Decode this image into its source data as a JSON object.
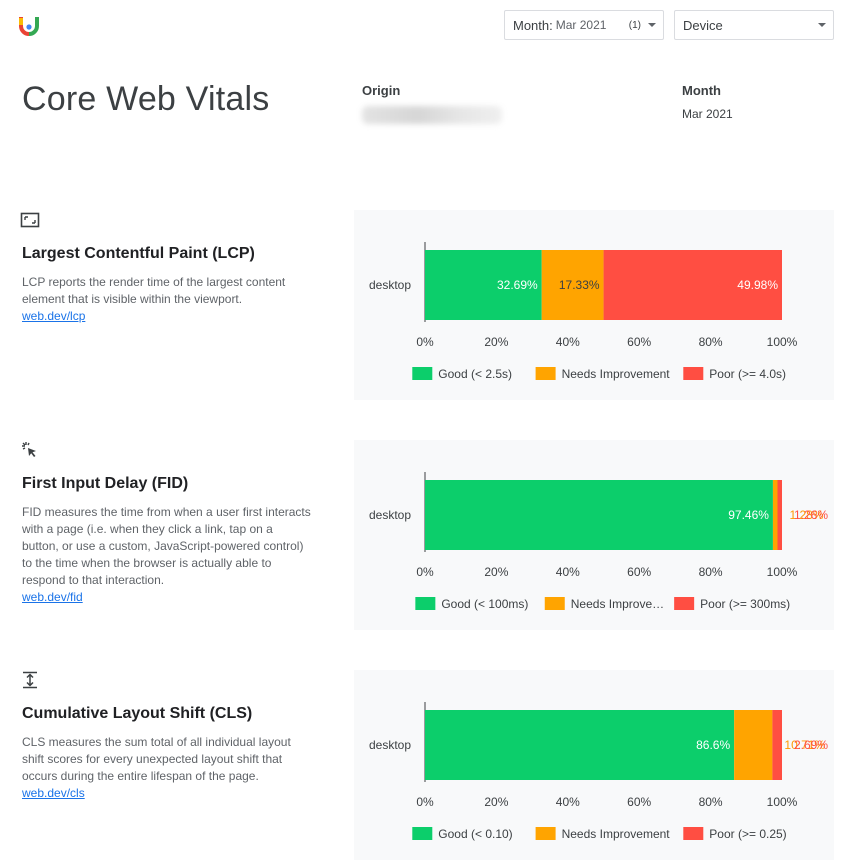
{
  "header": {
    "filters": {
      "month": {
        "label": "Month:",
        "value": "Mar 2021",
        "count": "(1)"
      },
      "device": {
        "label": "Device"
      }
    }
  },
  "page": {
    "title": "Core Web Vitals",
    "origin_label": "Origin",
    "month_label": "Month",
    "month_value": "Mar 2021"
  },
  "colors": {
    "good": "#0cce6b",
    "needs_improvement": "#ffa400",
    "poor": "#ff4e42"
  },
  "sections": [
    {
      "title": "Largest Contentful Paint (LCP)",
      "icon": "lcp-frame-icon",
      "description": "LCP reports the render time of the largest content element that is visible within the viewport.",
      "link": "web.dev/lcp"
    },
    {
      "title": "First Input Delay (FID)",
      "icon": "fid-cursor-click-icon",
      "description": "FID measures the time from when a user first interacts with a page (i.e. when they click a link, tap on a button, or use a custom, JavaScript-powered control) to the time when the browser is actually able to respond to that interaction.",
      "link": "web.dev/fid"
    },
    {
      "title": "Cumulative Layout Shift (CLS)",
      "icon": "cls-vertical-shift-icon",
      "description": "CLS measures the sum total of all individual layout shift scores for every unexpected layout shift that occurs during the entire lifespan of the page.",
      "link": "web.dev/cls"
    }
  ],
  "chart_data": [
    {
      "type": "bar",
      "orientation": "horizontal",
      "stacked": true,
      "categories": [
        "desktop"
      ],
      "series": [
        {
          "name": "Good (< 2.5s)",
          "values": [
            32.69
          ],
          "label": "32.69%"
        },
        {
          "name": "Needs Improvement",
          "values": [
            17.33
          ],
          "label": "17.33%"
        },
        {
          "name": "Poor (>= 4.0s)",
          "values": [
            49.98
          ],
          "label": "49.98%"
        }
      ],
      "xlim": [
        0,
        100
      ],
      "xticks": [
        "0%",
        "20%",
        "40%",
        "60%",
        "80%",
        "100%"
      ],
      "legend": "bottom"
    },
    {
      "type": "bar",
      "orientation": "horizontal",
      "stacked": true,
      "categories": [
        "desktop"
      ],
      "series": [
        {
          "name": "Good (< 100ms)",
          "values": [
            97.46
          ],
          "label": "97.46%"
        },
        {
          "name": "Needs Improve…",
          "values": [
            1.28
          ],
          "label": "1.28%"
        },
        {
          "name": "Poor (>= 300ms)",
          "values": [
            1.26
          ],
          "label": "1.26%"
        }
      ],
      "xlim": [
        0,
        100
      ],
      "xticks": [
        "0%",
        "20%",
        "40%",
        "60%",
        "80%",
        "100%"
      ],
      "legend": "bottom"
    },
    {
      "type": "bar",
      "orientation": "horizontal",
      "stacked": true,
      "categories": [
        "desktop"
      ],
      "series": [
        {
          "name": "Good (< 0.10)",
          "values": [
            86.6
          ],
          "label": "86.6%"
        },
        {
          "name": "Needs Improvement",
          "values": [
            10.71
          ],
          "label": "10.71%"
        },
        {
          "name": "Poor (>= 0.25)",
          "values": [
            2.69
          ],
          "label": "2.69%"
        }
      ],
      "xlim": [
        0,
        100
      ],
      "xticks": [
        "0%",
        "20%",
        "40%",
        "60%",
        "80%",
        "100%"
      ],
      "legend": "bottom"
    }
  ]
}
